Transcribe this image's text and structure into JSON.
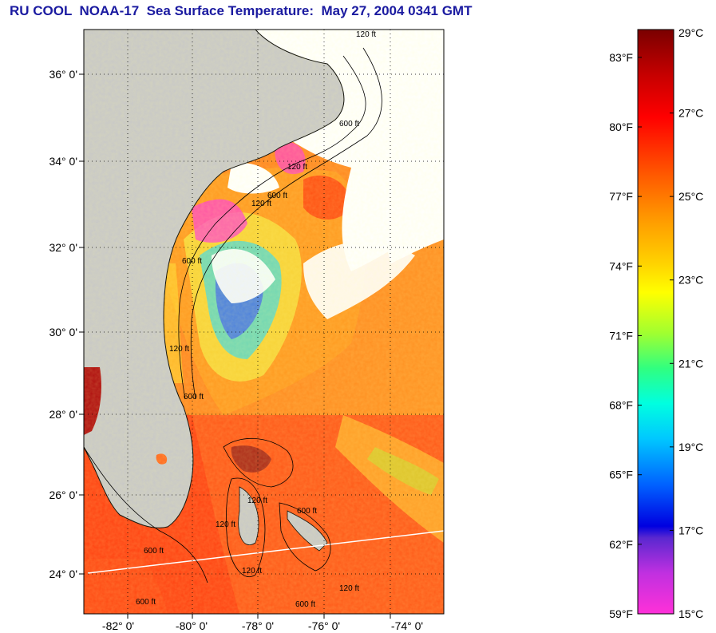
{
  "title": "RU COOL  NOAA-17  Sea Surface Temperature:  May 27, 2004 0341 GMT",
  "map": {
    "lon_ticks": [
      "-82° 0'",
      "-80° 0'",
      "-78° 0'",
      "-76° 0'",
      "-74° 0'"
    ],
    "lat_ticks": [
      "36° 0'",
      "34° 0'",
      "32° 0'",
      "30° 0'",
      "28° 0'",
      "26° 0'",
      "24° 0'"
    ],
    "depth_labels": [
      "120 ft",
      "600 ft",
      "120 ft",
      "600 ft",
      "120 ft",
      "600 ft",
      "120 ft",
      "600 ft",
      "120 ft",
      "120 ft",
      "600 ft",
      "120 ft",
      "600 ft",
      "600 ft",
      "600 ft",
      "120 ft"
    ],
    "colors": {
      "land": "#c8c8c8",
      "cloud": "#ffffff",
      "warm": "#ff5a14",
      "cool": "#ff9b1e"
    }
  },
  "colorbar": {
    "fahrenheit_labels": [
      "83°F",
      "80°F",
      "77°F",
      "74°F",
      "71°F",
      "68°F",
      "65°F",
      "62°F",
      "59°F"
    ],
    "celsius_labels": [
      "29°C",
      "27°C",
      "25°C",
      "23°C",
      "21°C",
      "19°C",
      "17°C",
      "15°C"
    ],
    "range_c": [
      15,
      29
    ],
    "range_f": [
      59,
      84.2
    ]
  }
}
